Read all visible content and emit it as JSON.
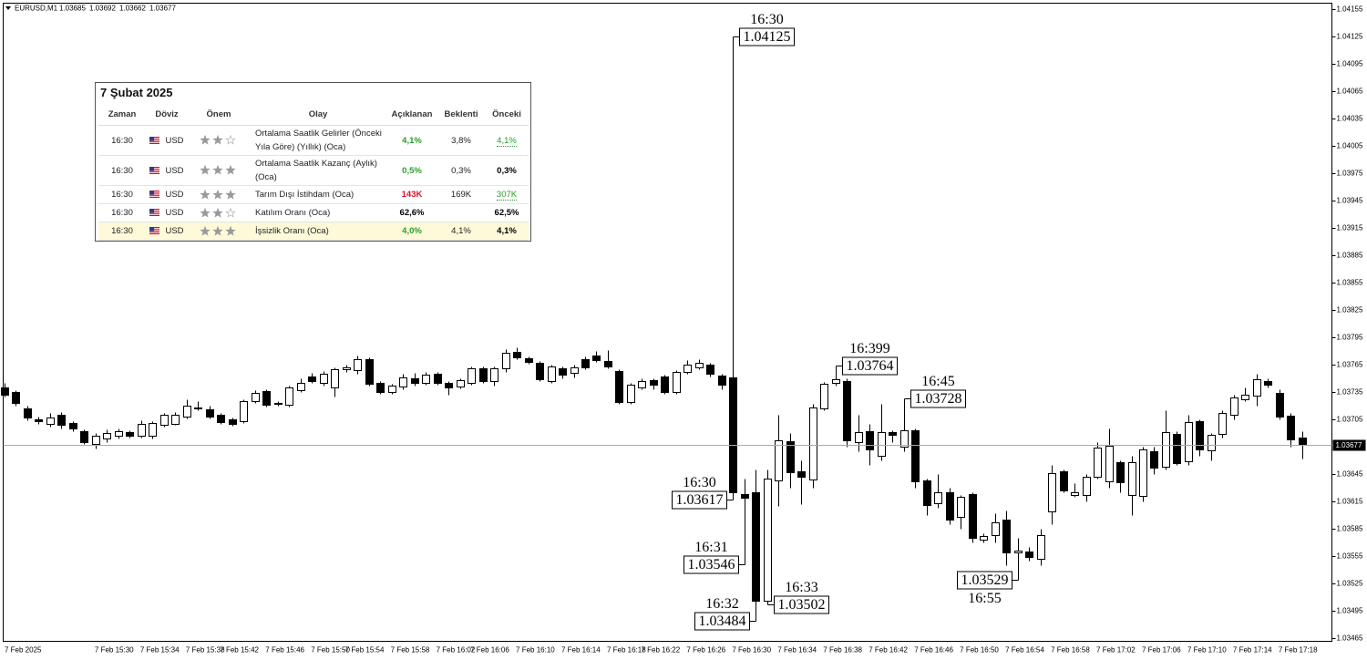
{
  "chart_data": {
    "type": "candlestick",
    "symbol": "EURUSD,M1",
    "categories": [
      "7 Feb 2025",
      null,
      null,
      null,
      null,
      null,
      null,
      null,
      "7 Feb 15:30",
      null,
      null,
      null,
      "7 Feb 15:34",
      null,
      null,
      null,
      "7 Feb 15:38",
      null,
      null,
      "7 Feb 15:42",
      null,
      null,
      null,
      "7 Feb 15:46",
      null,
      null,
      null,
      "7 Feb 15:50",
      null,
      null,
      "7 Feb 15:54",
      null,
      null,
      null,
      "7 Feb 15:58",
      null,
      null,
      null,
      "7 Feb 16:02",
      null,
      null,
      "7 Feb 16:06",
      null,
      null,
      null,
      "7 Feb 16:10",
      null,
      null,
      null,
      "7 Feb 16:14",
      null,
      null,
      null,
      "7 Feb 16:18",
      null,
      null,
      "7 Feb 16:22",
      null,
      null,
      null,
      "7 Feb 16:26",
      null,
      null,
      null,
      "7 Feb 16:30",
      null,
      null,
      null,
      "7 Feb 16:34",
      null,
      null,
      null,
      "7 Feb 16:38",
      null,
      null,
      null,
      "7 Feb 16:42",
      null,
      null,
      null,
      "7 Feb 16:46",
      null,
      null,
      null,
      "7 Feb 16:50",
      null,
      null,
      null,
      "7 Feb 16:54",
      null,
      null,
      null,
      "7 Feb 16:58",
      null,
      null,
      null,
      "7 Feb 17:02",
      null,
      null,
      null,
      "7 Feb 17:06",
      null,
      null,
      null,
      "7 Feb 17:10",
      null,
      null,
      null,
      "7 Feb 17:14",
      null,
      null,
      null,
      "7 Feb 17:18",
      null,
      null
    ],
    "open": [
      1.0374,
      1.03735,
      1.03717,
      1.03705,
      1.037,
      1.0371,
      1.03701,
      1.03692,
      1.03678,
      1.03684,
      1.03687,
      1.03691,
      1.03687,
      1.03687,
      1.03699,
      1.037,
      1.03708,
      1.03718,
      1.03716,
      1.0371,
      1.03705,
      1.03703,
      1.03725,
      1.03736,
      1.03723,
      1.03721,
      1.03737,
      1.03752,
      1.03745,
      1.0374,
      1.0376,
      1.03759,
      1.03771,
      1.03745,
      1.03735,
      1.03741,
      1.0375,
      1.03745,
      1.03755,
      1.03745,
      1.03741,
      1.03745,
      1.03761,
      1.03747,
      1.03761,
      1.03779,
      1.03772,
      1.03767,
      1.03747,
      1.03761,
      1.03756,
      1.03771,
      1.03775,
      1.03769,
      1.03758,
      1.03724,
      1.0374,
      1.03748,
      1.03752,
      1.03735,
      1.03757,
      1.03762,
      1.03765,
      1.03753,
      1.03751,
      1.03623,
      1.03625,
      1.03506,
      1.03638,
      1.03681,
      1.03648,
      1.03639,
      1.03717,
      1.03745,
      1.03747,
      1.0368,
      1.03692,
      1.03665,
      1.03691,
      1.03675,
      1.03693,
      1.03638,
      1.03613,
      1.03625,
      1.03598,
      1.03623,
      1.03573,
      1.03578,
      1.03595,
      1.03559,
      1.0356,
      1.03552,
      1.03604,
      1.03648,
      1.03622,
      1.03622,
      1.03642,
      1.03637,
      1.03658,
      1.03622,
      1.03621,
      1.0367,
      1.03653,
      1.03689,
      1.03659,
      1.03703,
      1.03671,
      1.03689,
      1.0371,
      1.03727,
      1.03731,
      1.03747,
      1.03734,
      1.03709,
      1.03685
    ],
    "high": [
      1.03745,
      1.03737,
      1.0372,
      1.03708,
      1.03712,
      1.03713,
      1.03703,
      1.03694,
      1.0369,
      1.03694,
      1.03695,
      1.03693,
      1.03704,
      1.03703,
      1.03712,
      1.03713,
      1.03727,
      1.03725,
      1.0372,
      1.03712,
      1.03707,
      1.03727,
      1.03737,
      1.03738,
      1.03725,
      1.03742,
      1.0375,
      1.03756,
      1.03758,
      1.03762,
      1.03765,
      1.03775,
      1.03773,
      1.03747,
      1.03744,
      1.03755,
      1.03756,
      1.03757,
      1.03757,
      1.03747,
      1.0375,
      1.03763,
      1.03763,
      1.03763,
      1.03782,
      1.03784,
      1.03774,
      1.03769,
      1.03765,
      1.03763,
      1.03765,
      1.03774,
      1.0378,
      1.03781,
      1.0376,
      1.03745,
      1.0375,
      1.0375,
      1.03754,
      1.03759,
      1.0377,
      1.03771,
      1.03767,
      1.03755,
      1.04125,
      1.0364,
      1.0365,
      1.0365,
      1.0371,
      1.0369,
      1.0366,
      1.03722,
      1.03746,
      1.03764,
      1.0375,
      1.0371,
      1.037,
      1.03722,
      1.03693,
      1.03728,
      1.03695,
      1.0364,
      1.03645,
      1.0363,
      1.03622,
      1.03625,
      1.0358,
      1.03602,
      1.03605,
      1.03575,
      1.03565,
      1.03585,
      1.03655,
      1.0365,
      1.03635,
      1.03645,
      1.0368,
      1.03695,
      1.0366,
      1.03665,
      1.03675,
      1.03675,
      1.03715,
      1.03692,
      1.0371,
      1.03705,
      1.0369,
      1.03715,
      1.03732,
      1.0374,
      1.03755,
      1.0375,
      1.03738,
      1.03712,
      1.03692
    ],
    "low": [
      1.0373,
      1.0372,
      1.03704,
      1.037,
      1.03697,
      1.03695,
      1.03692,
      1.03678,
      1.03673,
      1.0368,
      1.03684,
      1.03685,
      1.03685,
      1.03684,
      1.03697,
      1.03699,
      1.03706,
      1.03715,
      1.03706,
      1.037,
      1.03698,
      1.03701,
      1.03723,
      1.03719,
      1.0372,
      1.03719,
      1.03735,
      1.03745,
      1.03742,
      1.0373,
      1.03757,
      1.03755,
      1.03742,
      1.03733,
      1.03733,
      1.03738,
      1.03742,
      1.03743,
      1.03743,
      1.03732,
      1.03739,
      1.03743,
      1.03745,
      1.03742,
      1.03757,
      1.03771,
      1.03766,
      1.03747,
      1.03745,
      1.0375,
      1.03751,
      1.0376,
      1.03768,
      1.03761,
      1.03722,
      1.03722,
      1.03738,
      1.03738,
      1.03733,
      1.03733,
      1.03755,
      1.0376,
      1.03752,
      1.03738,
      1.03617,
      1.03546,
      1.03484,
      1.03502,
      1.0361,
      1.0363,
      1.03612,
      1.0363,
      1.03715,
      1.03742,
      1.03675,
      1.0367,
      1.03655,
      1.0366,
      1.0368,
      1.0367,
      1.0363,
      1.036,
      1.03608,
      1.0359,
      1.03585,
      1.0357,
      1.0357,
      1.0357,
      1.03545,
      1.03529,
      1.0355,
      1.03545,
      1.0359,
      1.03625,
      1.0362,
      1.03615,
      1.0364,
      1.0363,
      1.03625,
      1.036,
      1.03615,
      1.03645,
      1.0365,
      1.03655,
      1.03655,
      1.03665,
      1.0366,
      1.03685,
      1.03705,
      1.03725,
      1.0372,
      1.0374,
      1.03705,
      1.03675,
      1.03662
    ],
    "close": [
      1.03732,
      1.03723,
      1.03707,
      1.03703,
      1.03707,
      1.03699,
      1.03695,
      1.0368,
      1.03687,
      1.0369,
      1.03692,
      1.03687,
      1.037,
      1.03701,
      1.0371,
      1.0371,
      1.0372,
      1.03718,
      1.03708,
      1.03702,
      1.037,
      1.03725,
      1.03734,
      1.03721,
      1.03722,
      1.0374,
      1.03745,
      1.03747,
      1.03755,
      1.0376,
      1.03762,
      1.03771,
      1.03744,
      1.03735,
      1.03742,
      1.03751,
      1.03745,
      1.03754,
      1.03745,
      1.0374,
      1.03748,
      1.03761,
      1.03747,
      1.03761,
      1.03778,
      1.03773,
      1.03768,
      1.03749,
      1.03763,
      1.03754,
      1.03762,
      1.03762,
      1.0377,
      1.03763,
      1.03724,
      1.03743,
      1.03747,
      1.03743,
      1.03735,
      1.03757,
      1.03765,
      1.03767,
      1.03755,
      1.03743,
      1.03625,
      1.03619,
      1.03506,
      1.0364,
      1.03682,
      1.03647,
      1.03642,
      1.03718,
      1.03744,
      1.03749,
      1.03682,
      1.03691,
      1.03672,
      1.03691,
      1.03688,
      1.03693,
      1.03637,
      1.03611,
      1.03625,
      1.03595,
      1.0362,
      1.03575,
      1.03577,
      1.03592,
      1.03559,
      1.03561,
      1.03554,
      1.03578,
      1.03646,
      1.03627,
      1.03625,
      1.03642,
      1.03674,
      1.03676,
      1.03636,
      1.03658,
      1.03672,
      1.03652,
      1.03691,
      1.03657,
      1.03702,
      1.03672,
      1.03688,
      1.03712,
      1.03729,
      1.03732,
      1.03749,
      1.03743,
      1.03708,
      1.03683,
      1.03677
    ],
    "up_color": "#ffffff",
    "down_color": "#000000",
    "ylim": [
      1.03462,
      1.04162
    ],
    "yticks": [
      1.04155,
      1.04125,
      1.04095,
      1.04065,
      1.04035,
      1.04005,
      1.03975,
      1.03945,
      1.03915,
      1.03885,
      1.03855,
      1.03825,
      1.03795,
      1.03765,
      1.03735,
      1.03705,
      1.03645,
      1.03615,
      1.03585,
      1.03555,
      1.03525,
      1.03495,
      1.03465
    ],
    "current_price": 1.03677,
    "grid": false,
    "annotations": [
      {
        "time": "16:30",
        "value": 1.04125
      },
      {
        "time": "16:30",
        "value": 1.03617
      },
      {
        "time": "16:31",
        "value": 1.03546
      },
      {
        "time": "16:32",
        "value": 1.03484
      },
      {
        "time": "16:33",
        "value": 1.03502
      },
      {
        "time": "16:399",
        "value": 1.03764
      },
      {
        "time": "16:45",
        "value": 1.03728
      },
      {
        "time": "16:55",
        "value": 1.03529
      }
    ]
  },
  "calendar": {
    "title": "7 Şubat 2025",
    "headers": [
      "Zaman",
      "Döviz",
      "Önem",
      "Olay",
      "Açıklanan",
      "Beklenti",
      "Önceki"
    ],
    "max_importance": 3,
    "rows": [
      {
        "time": "16:30",
        "currency": "USD",
        "importance": 2,
        "event": "Ortalama Saatlik Gelirler (Önceki Yıla Göre) (Yıllık) (Oca)",
        "actual": "4,1%",
        "actual_color": "#2e9a2e",
        "forecast": "3,8%",
        "previous": "4,1%",
        "previous_color": "#2e9a2e"
      },
      {
        "time": "16:30",
        "currency": "USD",
        "importance": 3,
        "event": "Ortalama Saatlik Kazanç (Aylık) (Oca)",
        "actual": "0,5%",
        "actual_color": "#2e9a2e",
        "forecast": "0,3%",
        "previous": "0,3%",
        "previous_color": "#000000"
      },
      {
        "time": "16:30",
        "currency": "USD",
        "importance": 3,
        "event": "Tarım Dışı İstihdam (Oca)",
        "actual": "143K",
        "actual_color": "#e0102a",
        "forecast": "169K",
        "previous": "307K",
        "previous_color": "#2e9a2e"
      },
      {
        "time": "16:30",
        "currency": "USD",
        "importance": 2,
        "event": "Katılım Oranı (Oca)",
        "actual": "62,6%",
        "actual_color": "#000000",
        "forecast": null,
        "previous": "62,5%",
        "previous_color": "#000000"
      },
      {
        "time": "16:30",
        "currency": "USD",
        "importance": 3,
        "event": "İşsizlik Oranı (Oca)",
        "actual": "4,0%",
        "actual_color": "#2e9a2e",
        "forecast": "4,1%",
        "previous": "4,1%",
        "previous_color": "#000000",
        "highlighted": true
      }
    ]
  }
}
